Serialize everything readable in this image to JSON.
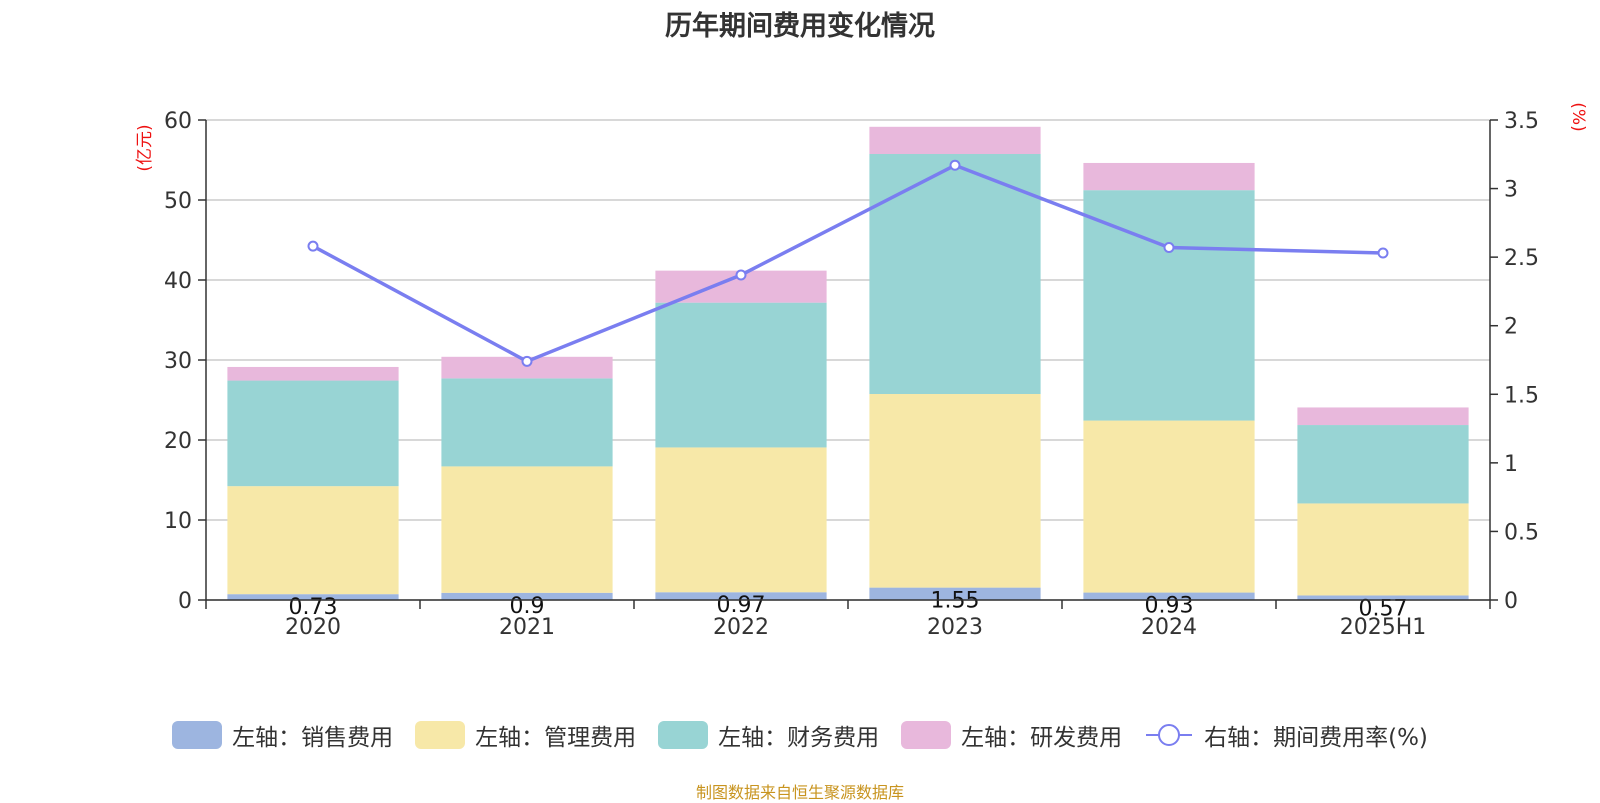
{
  "title": "历年期间费用变化情况",
  "source_note": "制图数据来自恒生聚源数据库",
  "left_unit": "(亿元)",
  "right_unit": "(%)",
  "chart_data": {
    "type": "bar",
    "stacked": true,
    "categories": [
      "2020",
      "2021",
      "2022",
      "2023",
      "2024",
      "2025H1"
    ],
    "left_axis": {
      "ylim": [
        0,
        60
      ],
      "ticks": [
        "0",
        "10",
        "20",
        "30",
        "40",
        "50",
        "60"
      ]
    },
    "right_axis": {
      "ylim": [
        0,
        3.5
      ],
      "ticks": [
        "0",
        "0.5",
        "1",
        "1.5",
        "2",
        "2.5",
        "3",
        "3.5"
      ]
    },
    "grid": true,
    "legend_position": "bottom",
    "series": [
      {
        "name": "左轴：销售费用",
        "type": "bar",
        "axis": "left",
        "color": "#9db5e0",
        "values": [
          0.73,
          0.9,
          0.97,
          1.55,
          0.93,
          0.57
        ],
        "labels": [
          "0.73",
          "0.9",
          "0.97",
          "1.55",
          "0.93",
          "0.57"
        ]
      },
      {
        "name": "左轴：管理费用",
        "type": "bar",
        "axis": "left",
        "color": "#f7e8a8",
        "values": [
          13.5,
          15.8,
          18.1,
          24.2,
          21.5,
          11.5
        ]
      },
      {
        "name": "左轴：财务费用",
        "type": "bar",
        "axis": "left",
        "color": "#98d4d4",
        "values": [
          13.2,
          11.0,
          18.1,
          30.0,
          28.8,
          9.8
        ]
      },
      {
        "name": "左轴：研发费用",
        "type": "bar",
        "axis": "left",
        "color": "#e8b8dc",
        "values": [
          1.7,
          2.7,
          4.0,
          3.4,
          3.4,
          2.2
        ]
      },
      {
        "name": "右轴：期间费用率(%)",
        "type": "line",
        "axis": "right",
        "color": "#7a7ef0",
        "values": [
          2.58,
          1.74,
          2.37,
          3.17,
          2.57,
          2.53
        ]
      }
    ]
  }
}
